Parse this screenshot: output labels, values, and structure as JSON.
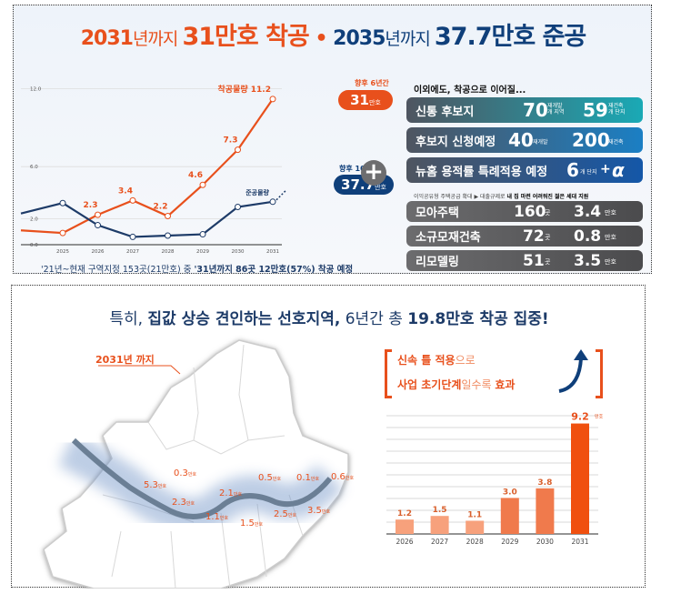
{
  "top": {
    "title": {
      "p1": "2031",
      "p2": "년까지 ",
      "p3": "31만호 착공",
      "sep": " • ",
      "p4": "2035",
      "p5": "년까지 ",
      "p6": "37.7만호 준공"
    },
    "badge_construction": {
      "caption": "향후 6년간",
      "value": "31",
      "unit": "만호"
    },
    "badge_completion": {
      "caption": "향후 10년간",
      "value": "37.7",
      "unit": "만호"
    },
    "plus_icon": "plus-circle-icon",
    "footnote": {
      "a": "'21년~현재 구역지정 153곳(21만호) 중 ",
      "b": "'31년까지  86곳 12만호(57%) 착공 예정"
    },
    "right": {
      "heading": "이외에도, 착공으로 이어질...",
      "rows": [
        {
          "label": "신통 후보지",
          "v1": "70",
          "u1a": "재개발",
          "u1b": "개 지역",
          "v2": "59",
          "u2a": "재건축",
          "u2b": "개 단지"
        },
        {
          "label": "후보지 신청예정",
          "v1": "40",
          "u1a": "재개발",
          "v2": "200",
          "u2a": "재건축"
        },
        {
          "label": "뉴홈 용적률 특례적용 예정",
          "v1": "6",
          "u1a": "개 단지",
          "plus": "+",
          "alpha": "α"
        }
      ],
      "note": {
        "a": "이익공유형 주택공급 확대 ▶ 대출규제로 ",
        "b": "내 집 마련 어려워진 젊은 세대 지원"
      },
      "grey_rows": [
        {
          "label": "모아주택",
          "count": "160",
          "count_unit": "곳",
          "homes": "3.4",
          "homes_unit": "만호"
        },
        {
          "label": "소규모재건축",
          "count": "72",
          "count_unit": "곳",
          "homes": "0.8",
          "homes_unit": "만호"
        },
        {
          "label": "리모델링",
          "count": "51",
          "count_unit": "곳",
          "homes": "3.5",
          "homes_unit": "만호"
        }
      ]
    }
  },
  "bottom": {
    "subtitle": {
      "a": "특히,  ",
      "b": "집값 상승 견인하는 선호지역,",
      "c": " 6년간 총 ",
      "d": "19.8만호 착공 집중!"
    },
    "map_callout": "2031년 까지",
    "map_unit": "만호",
    "map_values": [
      "0.3",
      "5.3",
      "2.3",
      "2.1",
      "1.1",
      "1.5",
      "0.5",
      "0.1",
      "0.6",
      "3.5",
      "2.5"
    ],
    "bar_caption": {
      "l1a": "신속 틀 적용",
      "l1b": "으로",
      "l2a": "사업 초기단계",
      "l2b": "일수록 ",
      "l2c": "효과"
    },
    "colors": {
      "orange": "#e8501c",
      "navy": "#0f3f7a",
      "bar_light": "#f7a17c",
      "bar_mid": "#f07a4c",
      "bar_strong": "#f0500f"
    }
  },
  "chart_data": [
    {
      "type": "line",
      "x": [
        "2025",
        "2026",
        "2027",
        "2028",
        "2029",
        "2030",
        "2031"
      ],
      "yticks": [
        "0.0",
        "2.0",
        "6.0",
        "12.0"
      ],
      "ylim": [
        0,
        12
      ],
      "series": [
        {
          "name": "착공물량",
          "values": [
            0.9,
            2.3,
            3.4,
            2.2,
            4.6,
            7.3,
            11.2
          ],
          "labels": [
            "",
            "2.3",
            "3.4",
            "2.2",
            "4.6",
            "7.3",
            "11.2"
          ],
          "color": "#e8501c"
        },
        {
          "name": "준공물량",
          "values": [
            3.2,
            1.5,
            0.6,
            0.7,
            0.8,
            2.9,
            3.3
          ],
          "color": "#1d3b68"
        }
      ],
      "grid": true
    },
    {
      "type": "bar",
      "categories": [
        "2026",
        "2027",
        "2028",
        "2029",
        "2030",
        "2031"
      ],
      "values": [
        1.2,
        1.5,
        1.1,
        3.0,
        3.8,
        9.2
      ],
      "labels": [
        "1.2",
        "1.5",
        "1.1",
        "3.0",
        "3.8",
        "9.2"
      ],
      "last_unit": "만호",
      "grid": true
    }
  ]
}
